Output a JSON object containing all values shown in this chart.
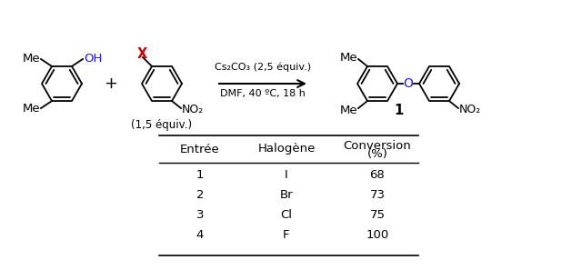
{
  "table_headers": [
    "Entrée",
    "Halogène",
    "Conversion\n(%)"
  ],
  "table_rows": [
    [
      "1",
      "I",
      "68"
    ],
    [
      "2",
      "Br",
      "73"
    ],
    [
      "3",
      "Cl",
      "75"
    ],
    [
      "4",
      "F",
      "100"
    ]
  ],
  "reaction_conditions_line1": "Cs₂CO₃ (2,5 équiv.)",
  "reaction_conditions_line2": "DMF, 40 ºC, 18 h",
  "reagent_equiv": "(1,5 équiv.)",
  "product_label": "1",
  "bg_color": "#ffffff",
  "text_color": "#000000",
  "oh_color": "#1a1aff",
  "x_color": "#cc0000",
  "o_color": "#1a1aff",
  "table_header_fontsize": 9.5,
  "table_body_fontsize": 9.5,
  "figwidth": 6.18,
  "figheight": 2.97,
  "dpi": 100
}
